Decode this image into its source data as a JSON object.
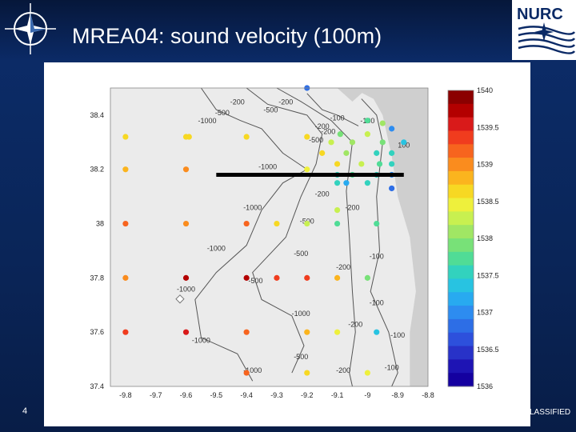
{
  "slide": {
    "title": "MREA04: sound velocity (100m)",
    "page_number": "4",
    "classification": "LASSIFIED",
    "logo_right_text": "NURC"
  },
  "colors": {
    "background": "#0b2a66",
    "panel": "#ffffff",
    "land": "#cfcfcf",
    "sea": "#ebebeb",
    "contour": "#555555",
    "section_line": "#000000"
  },
  "chart_data": {
    "type": "scatter",
    "title": "",
    "xlabel": "",
    "ylabel": "",
    "xlim": [
      -9.85,
      -8.8
    ],
    "ylim": [
      37.4,
      38.5
    ],
    "xticks": [
      "-9.8",
      "-9.7",
      "-9.6",
      "-9.5",
      "-9.4",
      "-9.3",
      "-9.2",
      "-9.1",
      "-9",
      "-8.9",
      "-8.8"
    ],
    "yticks": [
      "37.4",
      "37.6",
      "37.8",
      "38",
      "38.2",
      "38.4"
    ],
    "colorbar": {
      "min": 1536,
      "max": 1540,
      "labels": [
        "1540",
        "1539.5",
        "1539",
        "1538.5",
        "1538",
        "1537.5",
        "1537",
        "1536.5",
        "1536"
      ],
      "colors": [
        "#8b0000",
        "#b30000",
        "#d91a1a",
        "#f03c1e",
        "#f7641e",
        "#fa8c1e",
        "#fbb41e",
        "#f7d823",
        "#eef03c",
        "#c8f050",
        "#a0e664",
        "#78e178",
        "#50dc96",
        "#32d2be",
        "#28c3e1",
        "#28aaf0",
        "#2d8cf0",
        "#2d6ee6",
        "#2d50dc",
        "#2832c8",
        "#1e14b4",
        "#1400a0"
      ]
    },
    "points": [
      {
        "x": -9.2,
        "y": 38.5,
        "v": 1536.8
      },
      {
        "x": -9.8,
        "y": 38.32,
        "v": 1538.6
      },
      {
        "x": -9.6,
        "y": 38.32,
        "v": 1538.6
      },
      {
        "x": -9.59,
        "y": 38.32,
        "v": 1538.6
      },
      {
        "x": -9.4,
        "y": 38.32,
        "v": 1538.7
      },
      {
        "x": -9.2,
        "y": 38.32,
        "v": 1538.7
      },
      {
        "x": -9.0,
        "y": 38.38,
        "v": 1537.7
      },
      {
        "x": -8.95,
        "y": 38.37,
        "v": 1538.1
      },
      {
        "x": -8.92,
        "y": 38.35,
        "v": 1537.0
      },
      {
        "x": -9.09,
        "y": 38.33,
        "v": 1538.0
      },
      {
        "x": -9.0,
        "y": 38.33,
        "v": 1538.2
      },
      {
        "x": -9.12,
        "y": 38.3,
        "v": 1538.3
      },
      {
        "x": -9.05,
        "y": 38.3,
        "v": 1538.1
      },
      {
        "x": -8.95,
        "y": 38.3,
        "v": 1538.0
      },
      {
        "x": -8.88,
        "y": 38.3,
        "v": 1537.3
      },
      {
        "x": -8.92,
        "y": 38.26,
        "v": 1537.5
      },
      {
        "x": -8.97,
        "y": 38.26,
        "v": 1537.6
      },
      {
        "x": -9.07,
        "y": 38.26,
        "v": 1538.1
      },
      {
        "x": -9.15,
        "y": 38.26,
        "v": 1538.7
      },
      {
        "x": -9.8,
        "y": 38.2,
        "v": 1538.9
      },
      {
        "x": -9.6,
        "y": 38.2,
        "v": 1539.0
      },
      {
        "x": -9.2,
        "y": 38.2,
        "v": 1538.4
      },
      {
        "x": -9.1,
        "y": 38.22,
        "v": 1538.6
      },
      {
        "x": -9.02,
        "y": 38.22,
        "v": 1538.2
      },
      {
        "x": -8.96,
        "y": 38.22,
        "v": 1537.8
      },
      {
        "x": -8.92,
        "y": 38.22,
        "v": 1537.5
      },
      {
        "x": -9.1,
        "y": 38.18,
        "v": 1537.6
      },
      {
        "x": -9.05,
        "y": 38.18,
        "v": 1537.8
      },
      {
        "x": -8.97,
        "y": 38.18,
        "v": 1537.5
      },
      {
        "x": -8.92,
        "y": 38.18,
        "v": 1537.0
      },
      {
        "x": -9.1,
        "y": 38.15,
        "v": 1537.5
      },
      {
        "x": -9.07,
        "y": 38.15,
        "v": 1537.2
      },
      {
        "x": -9.0,
        "y": 38.15,
        "v": 1537.6
      },
      {
        "x": -8.92,
        "y": 38.13,
        "v": 1536.9
      },
      {
        "x": -9.8,
        "y": 38.0,
        "v": 1539.1
      },
      {
        "x": -9.6,
        "y": 38.0,
        "v": 1539.0
      },
      {
        "x": -9.4,
        "y": 38.0,
        "v": 1539.1
      },
      {
        "x": -9.3,
        "y": 38.0,
        "v": 1538.6
      },
      {
        "x": -9.2,
        "y": 38.0,
        "v": 1538.3
      },
      {
        "x": -9.1,
        "y": 38.05,
        "v": 1538.2
      },
      {
        "x": -9.1,
        "y": 38.0,
        "v": 1537.8
      },
      {
        "x": -8.97,
        "y": 38.0,
        "v": 1537.7
      },
      {
        "x": -9.8,
        "y": 37.8,
        "v": 1539.0
      },
      {
        "x": -9.6,
        "y": 37.8,
        "v": 1539.7
      },
      {
        "x": -9.4,
        "y": 37.8,
        "v": 1539.8
      },
      {
        "x": -9.3,
        "y": 37.8,
        "v": 1539.4
      },
      {
        "x": -9.2,
        "y": 37.8,
        "v": 1539.3
      },
      {
        "x": -9.1,
        "y": 37.8,
        "v": 1538.9
      },
      {
        "x": -9.0,
        "y": 37.8,
        "v": 1538.0
      },
      {
        "x": -9.8,
        "y": 37.6,
        "v": 1539.4
      },
      {
        "x": -9.6,
        "y": 37.6,
        "v": 1539.5
      },
      {
        "x": -9.4,
        "y": 37.6,
        "v": 1539.2
      },
      {
        "x": -9.2,
        "y": 37.6,
        "v": 1538.8
      },
      {
        "x": -9.1,
        "y": 37.6,
        "v": 1538.4
      },
      {
        "x": -8.97,
        "y": 37.6,
        "v": 1537.3
      },
      {
        "x": -9.4,
        "y": 37.45,
        "v": 1539.1
      },
      {
        "x": -9.2,
        "y": 37.45,
        "v": 1538.7
      },
      {
        "x": -9.0,
        "y": 37.45,
        "v": 1538.5
      }
    ],
    "section_line": {
      "x": [
        -9.5,
        -8.88
      ],
      "y": [
        38.18,
        38.18
      ]
    },
    "contour_labels": [
      {
        "text": "-100",
        "x": -9.0,
        "y": 38.37
      },
      {
        "text": "-200",
        "x": -9.13,
        "y": 38.33
      },
      {
        "text": "-500",
        "x": -9.17,
        "y": 38.3
      },
      {
        "text": "-1000",
        "x": -9.33,
        "y": 38.2
      },
      {
        "text": "-200",
        "x": -9.05,
        "y": 38.05
      },
      {
        "text": "-500",
        "x": -9.2,
        "y": 38.0
      },
      {
        "text": "-1000",
        "x": -9.38,
        "y": 38.05
      },
      {
        "text": "-1000",
        "x": -9.5,
        "y": 37.9
      },
      {
        "text": "-1000",
        "x": -9.6,
        "y": 37.75
      },
      {
        "text": "-500",
        "x": -9.37,
        "y": 37.78
      },
      {
        "text": "-500",
        "x": -9.22,
        "y": 37.88
      },
      {
        "text": "-200",
        "x": -9.08,
        "y": 37.83
      },
      {
        "text": "-100",
        "x": -8.97,
        "y": 37.87
      },
      {
        "text": "-100",
        "x": -8.97,
        "y": 37.7
      },
      {
        "text": "-1000",
        "x": -9.22,
        "y": 37.66
      },
      {
        "text": "-200",
        "x": -9.04,
        "y": 37.62
      },
      {
        "text": "-100",
        "x": -8.9,
        "y": 37.58
      },
      {
        "text": "-1000",
        "x": -9.55,
        "y": 37.56
      },
      {
        "text": "-500",
        "x": -9.22,
        "y": 37.5
      },
      {
        "text": "-1000",
        "x": -9.38,
        "y": 37.45
      },
      {
        "text": "-200",
        "x": -9.08,
        "y": 37.45
      },
      {
        "text": "-100",
        "x": -8.92,
        "y": 37.46
      },
      {
        "text": "-200",
        "x": -9.43,
        "y": 38.44
      },
      {
        "text": "-500",
        "x": -9.48,
        "y": 38.4
      },
      {
        "text": "-1000",
        "x": -9.53,
        "y": 38.37
      },
      {
        "text": "-500",
        "x": -9.32,
        "y": 38.41
      },
      {
        "text": "-200",
        "x": -9.27,
        "y": 38.44
      },
      {
        "text": "-100",
        "x": -9.1,
        "y": 38.38
      },
      {
        "text": "-200",
        "x": -9.15,
        "y": 38.35
      },
      {
        "text": "100",
        "x": -8.88,
        "y": 38.28
      },
      {
        "text": "-200",
        "x": -9.15,
        "y": 38.1
      }
    ]
  }
}
